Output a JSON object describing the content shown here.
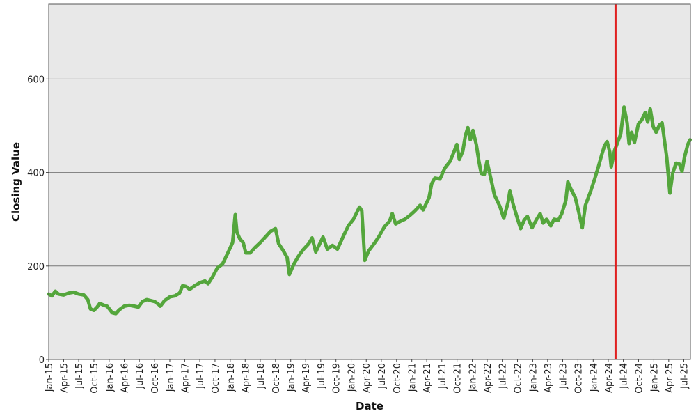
{
  "chart_data": {
    "type": "line",
    "title": "",
    "xlabel": "Date",
    "ylabel": "Closing Value",
    "x_range": [
      "2015-01-01",
      "2025-08-10"
    ],
    "ylim": [
      0,
      760
    ],
    "y_ticks": [
      0,
      200,
      400,
      600
    ],
    "x_ticks": [
      {
        "date": "2015-01-01",
        "label": "Jan-15"
      },
      {
        "date": "2015-04-01",
        "label": "Apr-15"
      },
      {
        "date": "2015-07-01",
        "label": "Jul-15"
      },
      {
        "date": "2015-10-01",
        "label": "Oct-15"
      },
      {
        "date": "2016-01-01",
        "label": "Jan-16"
      },
      {
        "date": "2016-04-01",
        "label": "Apr-16"
      },
      {
        "date": "2016-07-01",
        "label": "Jul-16"
      },
      {
        "date": "2016-10-01",
        "label": "Oct-16"
      },
      {
        "date": "2017-01-01",
        "label": "Jan-17"
      },
      {
        "date": "2017-04-01",
        "label": "Apr-17"
      },
      {
        "date": "2017-07-01",
        "label": "Jul-17"
      },
      {
        "date": "2017-10-01",
        "label": "Oct-17"
      },
      {
        "date": "2018-01-01",
        "label": "Jan-18"
      },
      {
        "date": "2018-04-01",
        "label": "Apr-18"
      },
      {
        "date": "2018-07-01",
        "label": "Jul-18"
      },
      {
        "date": "2018-10-01",
        "label": "Oct-18"
      },
      {
        "date": "2019-01-01",
        "label": "Jan-19"
      },
      {
        "date": "2019-04-01",
        "label": "Apr-19"
      },
      {
        "date": "2019-07-01",
        "label": "Jul-19"
      },
      {
        "date": "2019-10-01",
        "label": "Oct-19"
      },
      {
        "date": "2020-01-01",
        "label": "Jan-20"
      },
      {
        "date": "2020-04-01",
        "label": "Apr-20"
      },
      {
        "date": "2020-07-01",
        "label": "Jul-20"
      },
      {
        "date": "2020-10-01",
        "label": "Oct-20"
      },
      {
        "date": "2021-01-01",
        "label": "Jan-21"
      },
      {
        "date": "2021-04-01",
        "label": "Apr-21"
      },
      {
        "date": "2021-07-01",
        "label": "Jul-21"
      },
      {
        "date": "2021-10-01",
        "label": "Oct-21"
      },
      {
        "date": "2022-01-01",
        "label": "Jan-22"
      },
      {
        "date": "2022-04-01",
        "label": "Apr-22"
      },
      {
        "date": "2022-07-01",
        "label": "Jul-22"
      },
      {
        "date": "2022-10-01",
        "label": "Oct-22"
      },
      {
        "date": "2023-01-01",
        "label": "Jan-23"
      },
      {
        "date": "2023-04-01",
        "label": "Apr-23"
      },
      {
        "date": "2023-07-01",
        "label": "Jul-23"
      },
      {
        "date": "2023-10-01",
        "label": "Oct-23"
      },
      {
        "date": "2024-01-01",
        "label": "Jan-24"
      },
      {
        "date": "2024-04-01",
        "label": "Apr-24"
      },
      {
        "date": "2024-07-01",
        "label": "Jul-24"
      },
      {
        "date": "2024-10-01",
        "label": "Oct-24"
      },
      {
        "date": "2025-01-01",
        "label": "Jan-25"
      },
      {
        "date": "2025-04-01",
        "label": "Apr-25"
      },
      {
        "date": "2025-07-01",
        "label": "Jul-25"
      }
    ],
    "grid": "horizontal",
    "series": [
      {
        "color": "#54a63c",
        "points": [
          [
            "2015-01-01",
            140
          ],
          [
            "2015-01-20",
            136
          ],
          [
            "2015-02-10",
            146
          ],
          [
            "2015-03-01",
            140
          ],
          [
            "2015-04-01",
            138
          ],
          [
            "2015-05-01",
            142
          ],
          [
            "2015-06-01",
            144
          ],
          [
            "2015-07-01",
            140
          ],
          [
            "2015-08-01",
            138
          ],
          [
            "2015-08-25",
            128
          ],
          [
            "2015-09-10",
            108
          ],
          [
            "2015-10-01",
            105
          ],
          [
            "2015-10-20",
            112
          ],
          [
            "2015-11-05",
            120
          ],
          [
            "2015-12-01",
            116
          ],
          [
            "2015-12-20",
            114
          ],
          [
            "2016-01-20",
            100
          ],
          [
            "2016-02-10",
            98
          ],
          [
            "2016-03-01",
            106
          ],
          [
            "2016-04-01",
            114
          ],
          [
            "2016-05-01",
            116
          ],
          [
            "2016-06-01",
            114
          ],
          [
            "2016-06-25",
            112
          ],
          [
            "2016-07-20",
            124
          ],
          [
            "2016-08-15",
            128
          ],
          [
            "2016-10-01",
            124
          ],
          [
            "2016-10-25",
            118
          ],
          [
            "2016-11-05",
            114
          ],
          [
            "2016-12-01",
            126
          ],
          [
            "2017-01-01",
            134
          ],
          [
            "2017-02-01",
            136
          ],
          [
            "2017-03-01",
            142
          ],
          [
            "2017-03-20",
            158
          ],
          [
            "2017-04-10",
            156
          ],
          [
            "2017-05-01",
            150
          ],
          [
            "2017-06-01",
            158
          ],
          [
            "2017-07-01",
            164
          ],
          [
            "2017-08-01",
            168
          ],
          [
            "2017-08-20",
            162
          ],
          [
            "2017-09-15",
            176
          ],
          [
            "2017-10-15",
            196
          ],
          [
            "2017-11-15",
            204
          ],
          [
            "2017-12-20",
            230
          ],
          [
            "2018-01-15",
            250
          ],
          [
            "2018-01-31",
            310
          ],
          [
            "2018-02-10",
            272
          ],
          [
            "2018-02-28",
            258
          ],
          [
            "2018-03-20",
            250
          ],
          [
            "2018-04-05",
            228
          ],
          [
            "2018-05-01",
            228
          ],
          [
            "2018-06-01",
            240
          ],
          [
            "2018-07-01",
            250
          ],
          [
            "2018-08-01",
            262
          ],
          [
            "2018-09-01",
            274
          ],
          [
            "2018-10-01",
            280
          ],
          [
            "2018-10-20",
            248
          ],
          [
            "2018-11-15",
            234
          ],
          [
            "2018-12-10",
            218
          ],
          [
            "2018-12-24",
            182
          ],
          [
            "2019-01-20",
            204
          ],
          [
            "2019-02-15",
            220
          ],
          [
            "2019-03-15",
            234
          ],
          [
            "2019-04-20",
            248
          ],
          [
            "2019-05-10",
            260
          ],
          [
            "2019-06-01",
            230
          ],
          [
            "2019-07-15",
            262
          ],
          [
            "2019-08-10",
            236
          ],
          [
            "2019-09-10",
            244
          ],
          [
            "2019-10-10",
            236
          ],
          [
            "2019-11-15",
            264
          ],
          [
            "2019-12-15",
            286
          ],
          [
            "2020-01-15",
            300
          ],
          [
            "2020-02-20",
            326
          ],
          [
            "2020-03-05",
            318
          ],
          [
            "2020-03-23",
            212
          ],
          [
            "2020-04-15",
            232
          ],
          [
            "2020-05-15",
            246
          ],
          [
            "2020-06-15",
            262
          ],
          [
            "2020-07-20",
            284
          ],
          [
            "2020-08-20",
            296
          ],
          [
            "2020-09-05",
            312
          ],
          [
            "2020-09-25",
            290
          ],
          [
            "2020-10-25",
            296
          ],
          [
            "2020-11-20",
            300
          ],
          [
            "2020-12-20",
            308
          ],
          [
            "2021-01-20",
            318
          ],
          [
            "2021-02-20",
            330
          ],
          [
            "2021-03-10",
            320
          ],
          [
            "2021-04-15",
            346
          ],
          [
            "2021-05-01",
            376
          ],
          [
            "2021-05-20",
            388
          ],
          [
            "2021-06-20",
            386
          ],
          [
            "2021-07-20",
            410
          ],
          [
            "2021-08-20",
            424
          ],
          [
            "2021-09-10",
            442
          ],
          [
            "2021-09-30",
            460
          ],
          [
            "2021-10-15",
            428
          ],
          [
            "2021-11-05",
            446
          ],
          [
            "2021-11-20",
            478
          ],
          [
            "2021-12-05",
            496
          ],
          [
            "2021-12-20",
            470
          ],
          [
            "2022-01-05",
            490
          ],
          [
            "2022-01-25",
            460
          ],
          [
            "2022-02-10",
            424
          ],
          [
            "2022-02-24",
            398
          ],
          [
            "2022-03-15",
            396
          ],
          [
            "2022-03-31",
            424
          ],
          [
            "2022-04-20",
            392
          ],
          [
            "2022-05-15",
            352
          ],
          [
            "2022-06-16",
            328
          ],
          [
            "2022-07-10",
            302
          ],
          [
            "2022-08-05",
            336
          ],
          [
            "2022-08-16",
            360
          ],
          [
            "2022-09-05",
            332
          ],
          [
            "2022-09-30",
            302
          ],
          [
            "2022-10-20",
            280
          ],
          [
            "2022-11-10",
            298
          ],
          [
            "2022-11-30",
            306
          ],
          [
            "2022-12-28",
            282
          ],
          [
            "2023-01-25",
            300
          ],
          [
            "2023-02-15",
            312
          ],
          [
            "2023-03-05",
            292
          ],
          [
            "2023-03-25",
            300
          ],
          [
            "2023-04-20",
            286
          ],
          [
            "2023-05-10",
            300
          ],
          [
            "2023-06-05",
            298
          ],
          [
            "2023-06-25",
            312
          ],
          [
            "2023-07-20",
            340
          ],
          [
            "2023-08-01",
            380
          ],
          [
            "2023-08-20",
            364
          ],
          [
            "2023-09-15",
            346
          ],
          [
            "2023-10-05",
            316
          ],
          [
            "2023-10-27",
            282
          ],
          [
            "2023-11-15",
            330
          ],
          [
            "2023-12-15",
            358
          ],
          [
            "2024-01-10",
            386
          ],
          [
            "2024-02-01",
            412
          ],
          [
            "2024-02-20",
            436
          ],
          [
            "2024-03-10",
            458
          ],
          [
            "2024-03-25",
            466
          ],
          [
            "2024-04-10",
            444
          ],
          [
            "2024-04-19",
            412
          ],
          [
            "2024-05-10",
            448
          ],
          [
            "2024-05-25",
            462
          ],
          [
            "2024-06-15",
            482
          ],
          [
            "2024-07-05",
            540
          ],
          [
            "2024-07-24",
            506
          ],
          [
            "2024-08-05",
            462
          ],
          [
            "2024-08-20",
            486
          ],
          [
            "2024-09-06",
            464
          ],
          [
            "2024-09-30",
            504
          ],
          [
            "2024-10-20",
            512
          ],
          [
            "2024-11-10",
            528
          ],
          [
            "2024-11-25",
            508
          ],
          [
            "2024-12-10",
            536
          ],
          [
            "2024-12-28",
            498
          ],
          [
            "2025-01-15",
            486
          ],
          [
            "2025-02-05",
            502
          ],
          [
            "2025-02-20",
            506
          ],
          [
            "2025-03-05",
            472
          ],
          [
            "2025-03-20",
            432
          ],
          [
            "2025-04-08",
            356
          ],
          [
            "2025-04-25",
            398
          ],
          [
            "2025-05-15",
            420
          ],
          [
            "2025-06-05",
            418
          ],
          [
            "2025-06-20",
            402
          ],
          [
            "2025-07-05",
            432
          ],
          [
            "2025-07-25",
            460
          ],
          [
            "2025-08-08",
            470
          ]
        ]
      }
    ],
    "reference_line": {
      "date": "2024-05-15",
      "color": "#e02020"
    }
  }
}
